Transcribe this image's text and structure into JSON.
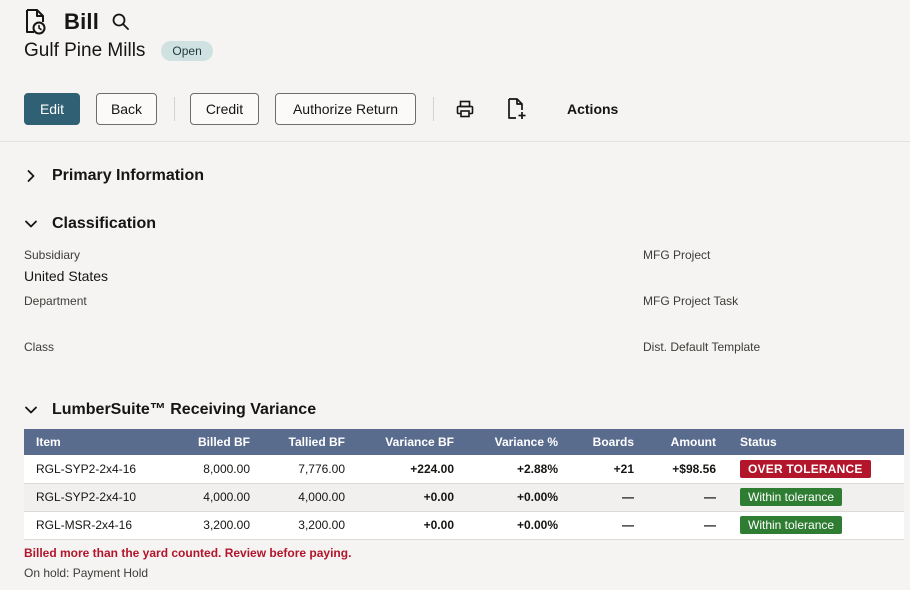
{
  "header": {
    "record_type": "Bill",
    "vendor": "Gulf Pine Mills",
    "status_badge": "Open",
    "icons": {
      "record": "document-clock-icon",
      "search": "search-icon"
    }
  },
  "toolbar": {
    "edit_label": "Edit",
    "back_label": "Back",
    "credit_label": "Credit",
    "authorize_return_label": "Authorize Return",
    "actions_label": "Actions",
    "icons": [
      "print-icon",
      "document-add-icon"
    ]
  },
  "sections": {
    "primary": "Primary Information",
    "classification": "Classification",
    "variance": "LumberSuite™ Receiving Variance"
  },
  "classification": {
    "subsidiary_label": "Subsidiary",
    "subsidiary_value": "United States",
    "department_label": "Department",
    "class_label": "Class",
    "mfg_project_label": "MFG Project",
    "mfg_project_task_label": "MFG Project Task",
    "dist_template_label": "Dist. Default Template"
  },
  "variance_table": {
    "headers": {
      "item": "Item",
      "billed": "Billed BF",
      "tallied": "Tallied BF",
      "var_bf": "Variance BF",
      "var_pct": "Variance %",
      "boards": "Boards",
      "amount": "Amount",
      "status": "Status"
    },
    "rows": [
      {
        "item": "RGL-SYP2-2x4-16",
        "billed": "8,000.00",
        "tallied": "7,776.00",
        "var_bf": "+224.00",
        "var_pct": "+2.88%",
        "boards": "+21",
        "amount": "+$98.56",
        "status": "OVER TOLERANCE"
      },
      {
        "item": "RGL-SYP2-2x4-10",
        "billed": "4,000.00",
        "tallied": "4,000.00",
        "var_bf": "+0.00",
        "var_pct": "+0.00%",
        "boards": "—",
        "amount": "—",
        "status": "Within tolerance"
      },
      {
        "item": "RGL-MSR-2x4-16",
        "billed": "3,200.00",
        "tallied": "3,200.00",
        "var_bf": "+0.00",
        "var_pct": "+0.00%",
        "boards": "—",
        "amount": "—",
        "status": "Within tolerance"
      }
    ]
  },
  "footer": {
    "warning": "Billed more than the yard counted. Review before paying.",
    "hold": "On hold: Payment Hold"
  },
  "colors": {
    "primary_button": "#2f6073",
    "table_header": "#5a6c8e",
    "over_tolerance": "#b3152b",
    "within_tolerance": "#2e7d32",
    "badge": "#cfe1e0"
  }
}
